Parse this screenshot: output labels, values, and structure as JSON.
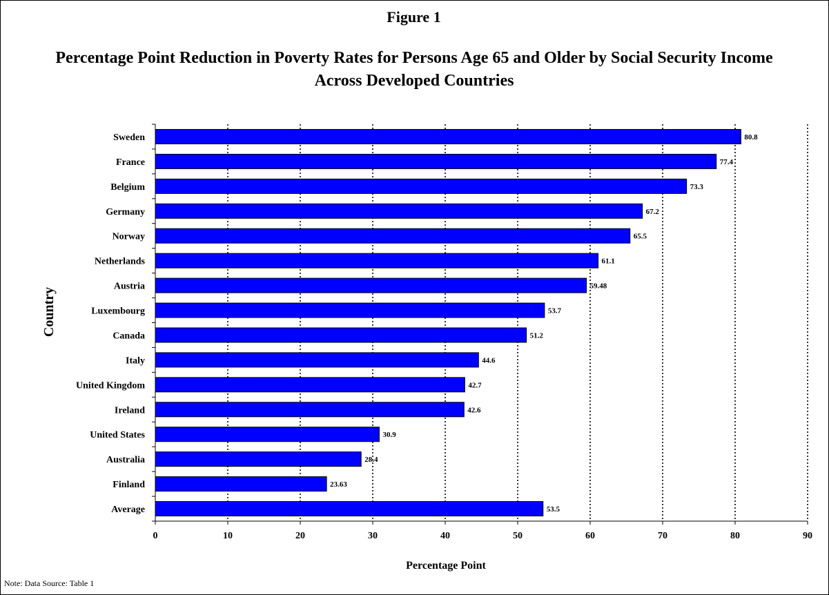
{
  "figure_label": "Figure 1",
  "note": "Note: Data Source:  Table 1",
  "chart_data": {
    "type": "bar",
    "orientation": "horizontal",
    "title": "Percentage Point Reduction in Poverty Rates for Persons Age 65 and Older by Social Security Income Across Developed Countries",
    "xlabel": "Percentage Point",
    "ylabel": "Country",
    "xlim": [
      0,
      90
    ],
    "xticks": [
      0,
      10,
      20,
      30,
      40,
      50,
      60,
      70,
      80,
      90
    ],
    "grid": "vertical-dotted",
    "bar_color": "#0000FF",
    "categories": [
      "Sweden",
      "France",
      "Belgium",
      "Germany",
      "Norway",
      "Netherlands",
      "Austria",
      "Luxembourg",
      "Canada",
      "Italy",
      "United Kingdom",
      "Ireland",
      "United States",
      "Australia",
      "Finland",
      "Average"
    ],
    "values": [
      80.8,
      77.4,
      73.3,
      67.2,
      65.5,
      61.1,
      59.48,
      53.7,
      51.2,
      44.6,
      42.7,
      42.6,
      30.9,
      28.4,
      23.63,
      53.5
    ],
    "value_labels": [
      "80.8",
      "77.4",
      "73.3",
      "67.2",
      "65.5",
      "61.1",
      "59.48",
      "53.7",
      "51.2",
      "44.6",
      "42.7",
      "42.6",
      "30.9",
      "28.4",
      "23.63",
      "53.5"
    ]
  }
}
